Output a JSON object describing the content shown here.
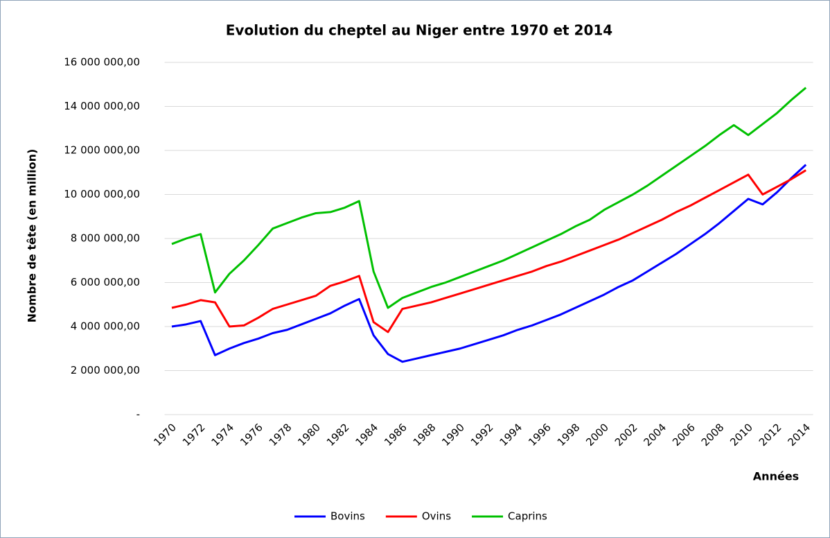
{
  "chart_data": {
    "type": "line",
    "title": "Evolution du cheptel au Niger entre 1970 et 2014",
    "x_label": "Années",
    "y_label": "Nombre de tête (en million)",
    "categories": [
      "1970",
      null,
      "1972",
      null,
      "1974",
      null,
      "1976",
      null,
      "1978",
      null,
      "1980",
      null,
      "1982",
      null,
      "1984",
      null,
      "1986",
      null,
      "1988",
      null,
      "1990",
      null,
      "1992",
      null,
      "1994",
      null,
      "1996",
      null,
      "1998",
      null,
      "2000",
      null,
      "2002",
      null,
      "2004",
      null,
      "2006",
      null,
      "2008",
      null,
      "2010",
      null,
      "2012",
      null,
      "2014"
    ],
    "series": [
      {
        "name": "Bovins",
        "color": "#0000ff",
        "values": [
          4000000,
          4100000,
          4250000,
          2700000,
          3000000,
          3250000,
          3450000,
          3700000,
          3850000,
          4100000,
          4350000,
          4600000,
          4950000,
          5250000,
          3600000,
          2750000,
          2400000,
          2550000,
          2700000,
          2850000,
          3000000,
          3200000,
          3400000,
          3600000,
          3850000,
          4050000,
          4300000,
          4550000,
          4850000,
          5150000,
          5450000,
          5800000,
          6100000,
          6500000,
          6900000,
          7300000,
          7750000,
          8200000,
          8700000,
          9250000,
          9800000,
          9550000,
          10100000,
          10750000,
          11350000
        ]
      },
      {
        "name": "Ovins",
        "color": "#ff0000",
        "values": [
          4850000,
          5000000,
          5200000,
          5100000,
          4000000,
          4050000,
          4400000,
          4800000,
          5000000,
          5200000,
          5400000,
          5850000,
          6050000,
          6300000,
          4200000,
          3750000,
          4800000,
          4950000,
          5100000,
          5300000,
          5500000,
          5700000,
          5900000,
          6100000,
          6300000,
          6500000,
          6750000,
          6950000,
          7200000,
          7450000,
          7700000,
          7950000,
          8250000,
          8550000,
          8850000,
          9200000,
          9500000,
          9850000,
          10200000,
          10550000,
          10900000,
          10000000,
          10350000,
          10700000,
          11100000
        ]
      },
      {
        "name": "Caprins",
        "color": "#00c000",
        "values": [
          7750000,
          8000000,
          8200000,
          5550000,
          6400000,
          7000000,
          7700000,
          8450000,
          8700000,
          8950000,
          9150000,
          9200000,
          9400000,
          9700000,
          6500000,
          4850000,
          5300000,
          5550000,
          5800000,
          6000000,
          6250000,
          6500000,
          6750000,
          7000000,
          7300000,
          7600000,
          7900000,
          8200000,
          8550000,
          8850000,
          9300000,
          9650000,
          10000000,
          10400000,
          10850000,
          11300000,
          11750000,
          12200000,
          12700000,
          13150000,
          12700000,
          13200000,
          13700000,
          14300000,
          14850000
        ]
      }
    ],
    "ylim": [
      0,
      16000000
    ],
    "yticks": [
      {
        "value": 0,
        "label": "-"
      },
      {
        "value": 2000000,
        "label": "2 000 000,00"
      },
      {
        "value": 4000000,
        "label": "4 000 000,00"
      },
      {
        "value": 6000000,
        "label": "6 000 000,00"
      },
      {
        "value": 8000000,
        "label": "8 000 000,00"
      },
      {
        "value": 10000000,
        "label": "10 000 000,00"
      },
      {
        "value": 12000000,
        "label": "12 000 000,00"
      },
      {
        "value": 14000000,
        "label": "14 000 000,00"
      },
      {
        "value": 16000000,
        "label": "16 000 000,00"
      }
    ],
    "grid": true,
    "legend": "bottom"
  }
}
